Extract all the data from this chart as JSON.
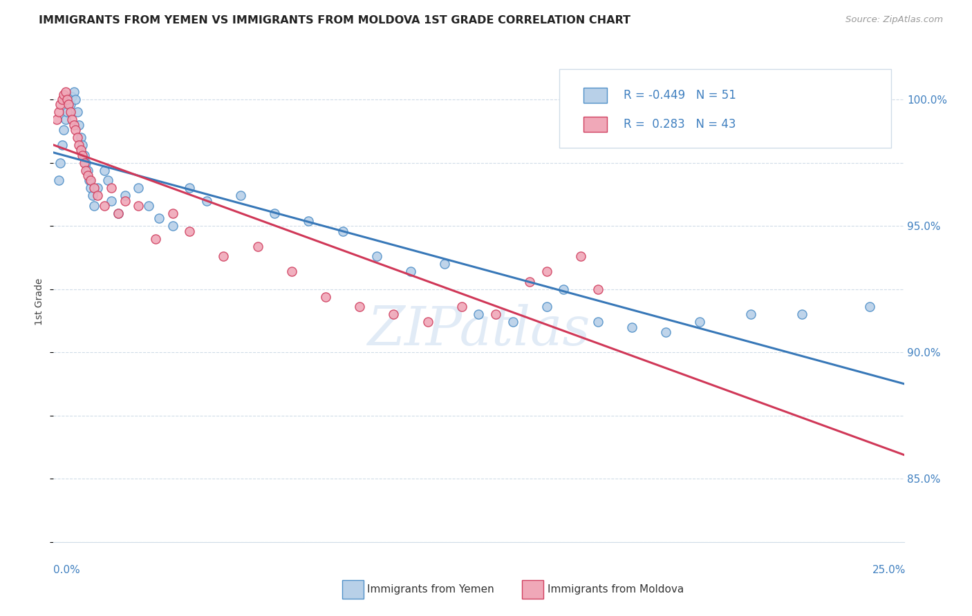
{
  "title": "IMMIGRANTS FROM YEMEN VS IMMIGRANTS FROM MOLDOVA 1ST GRADE CORRELATION CHART",
  "source": "Source: ZipAtlas.com",
  "ylabel": "1st Grade",
  "xlim": [
    0.0,
    25.0
  ],
  "ylim": [
    82.5,
    101.5
  ],
  "legend_r_yemen": "-0.449",
  "legend_n_yemen": "51",
  "legend_r_moldova": "0.283",
  "legend_n_moldova": "43",
  "color_yemen_fill": "#b8d0e8",
  "color_moldova_fill": "#f0a8b8",
  "color_yemen_edge": "#5090c8",
  "color_moldova_edge": "#d04060",
  "color_yemen_line": "#3878b8",
  "color_moldova_line": "#d03858",
  "color_axis_label": "#4080c0",
  "color_grid": "#d0dce8",
  "color_title": "#222222",
  "color_source": "#999999",
  "background_color": "#ffffff",
  "watermark": "ZIPatlas",
  "ytick_positions": [
    85,
    90,
    95,
    100
  ],
  "ytick_labels": [
    "85.0%",
    "90.0%",
    "95.0%",
    "100.0%"
  ],
  "yemen_x": [
    0.15,
    0.2,
    0.25,
    0.3,
    0.35,
    0.4,
    0.5,
    0.55,
    0.6,
    0.65,
    0.7,
    0.75,
    0.8,
    0.85,
    0.9,
    0.95,
    1.0,
    1.05,
    1.1,
    1.15,
    1.2,
    1.3,
    1.5,
    1.6,
    1.7,
    1.9,
    2.1,
    2.5,
    2.8,
    3.1,
    3.5,
    4.0,
    4.5,
    5.5,
    6.5,
    7.5,
    8.5,
    9.5,
    10.5,
    11.5,
    12.5,
    13.5,
    14.5,
    15.0,
    16.0,
    17.0,
    18.0,
    19.0,
    20.5,
    22.0,
    24.0
  ],
  "yemen_y": [
    96.8,
    97.5,
    98.2,
    98.8,
    99.2,
    99.5,
    99.8,
    100.1,
    100.3,
    100.0,
    99.5,
    99.0,
    98.5,
    98.2,
    97.8,
    97.5,
    97.2,
    96.8,
    96.5,
    96.2,
    95.8,
    96.5,
    97.2,
    96.8,
    96.0,
    95.5,
    96.2,
    96.5,
    95.8,
    95.3,
    95.0,
    96.5,
    96.0,
    96.2,
    95.5,
    95.2,
    94.8,
    93.8,
    93.2,
    93.5,
    91.5,
    91.2,
    91.8,
    92.5,
    91.2,
    91.0,
    90.8,
    91.2,
    91.5,
    91.5,
    91.8
  ],
  "moldova_x": [
    0.1,
    0.15,
    0.2,
    0.25,
    0.3,
    0.35,
    0.4,
    0.45,
    0.5,
    0.55,
    0.6,
    0.65,
    0.7,
    0.75,
    0.8,
    0.85,
    0.9,
    0.95,
    1.0,
    1.1,
    1.2,
    1.3,
    1.5,
    1.7,
    1.9,
    2.1,
    2.5,
    3.0,
    3.5,
    4.0,
    5.0,
    6.0,
    7.0,
    8.0,
    9.0,
    10.0,
    11.0,
    12.0,
    13.0,
    14.0,
    14.5,
    15.5,
    16.0
  ],
  "moldova_y": [
    99.2,
    99.5,
    99.8,
    100.0,
    100.2,
    100.3,
    100.0,
    99.8,
    99.5,
    99.2,
    99.0,
    98.8,
    98.5,
    98.2,
    98.0,
    97.8,
    97.5,
    97.2,
    97.0,
    96.8,
    96.5,
    96.2,
    95.8,
    96.5,
    95.5,
    96.0,
    95.8,
    94.5,
    95.5,
    94.8,
    93.8,
    94.2,
    93.2,
    92.2,
    91.8,
    91.5,
    91.2,
    91.8,
    91.5,
    92.8,
    93.2,
    93.8,
    92.5
  ]
}
